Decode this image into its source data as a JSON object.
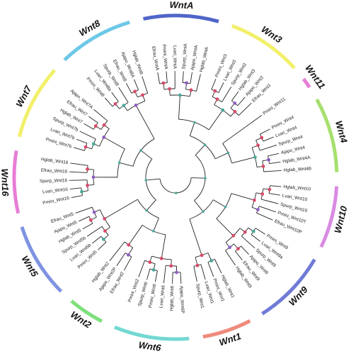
{
  "figure": {
    "bootstrap_colors": {
      "high": "#d94a6a",
      "medium": "#8e5fc4",
      "low": "#49a99a"
    },
    "clades": [
      {
        "name": "WntA",
        "color": "#4f66c8",
        "leaves": [
          "Efrau_WntA",
          "Pmini_WntA",
          "Lvari_WntA",
          "Spurp_WntA",
          "Ajapo_WntA",
          "Hglab_WntA"
        ]
      },
      {
        "name": "Wnt3",
        "color": "#f2ef6a",
        "leaves": [
          "Pmini_Wnt3",
          "Lvari_Wnt3",
          "Spurp_Wnt3",
          "Hglab_Wnt3",
          "Ajapo_Wnt3",
          "Efrau_Wnt3"
        ]
      },
      {
        "name": "Wnt11",
        "color": "#e77ed6",
        "leaves": [
          "Pmini_Wnt11"
        ]
      },
      {
        "name": "Wnt4",
        "color": "#a6e06e",
        "leaves": [
          "Pmini_Wnt4",
          "Lvari_Wnt4",
          "Spurp_Wnt4",
          "Ajapo_Wnt4",
          "Hglab_Wnt4A",
          "Hglab_Wnt4B"
        ]
      },
      {
        "name": "Wnt10",
        "color": "#d98be3",
        "leaves": [
          "Hglab_Wnt10",
          "Lvari_Wnt10",
          "Spurp_Wnt10",
          "Pmini_Wnt10T",
          "Efrau_Wnt10P"
        ]
      },
      {
        "name": "Wnt9",
        "color": "#6f7bd6",
        "leaves": [
          "Pmini_Wnt9",
          "Lvari_Wnt9a",
          "Spurp_Wnt9",
          "Ajapo_Wnt9",
          "Efrau_Wnt9",
          "Hglab_Wnt9"
        ]
      },
      {
        "name": "Wnt1",
        "color": "#ef8a7c",
        "leaves": [
          "Hglab_Wnt1",
          "Pmini_Wnt1",
          "Lvari_Wnt1",
          "Spurp_Wnt1"
        ]
      },
      {
        "name": "Wnt6",
        "color": "#72d8d2",
        "leaves": [
          "Ajapo_Wnt6P",
          "Hglab_Wnt6",
          "Lvari_Wnt6",
          "Pmini_Wnt6",
          "Spurp_Wnt6",
          "Pmini_Wnt2"
        ]
      },
      {
        "name": "Wnt2",
        "color": "#7ee07a",
        "leaves": [
          "Efrau_Wnt2",
          "Ajapo_Wnt2P",
          "Hglab_Wnt2"
        ]
      },
      {
        "name": "Wnt5",
        "color": "#7f93e3",
        "leaves": [
          "Pmini_Wnt5",
          "Lvari_Wnt5b",
          "Spurp_Wnt5b",
          "Hglab_Wnt5",
          "Ajapo_Wnt5",
          "Efrau_Wnt5"
        ]
      },
      {
        "name": "Wnt16",
        "color": "#e77ed6",
        "leaves": [
          "Pmini_Wnt16",
          "Lvari_Wnt16",
          "Spurp_Wnt16",
          "Efrau_Wnt16",
          "Hglab_Wnt16"
        ]
      },
      {
        "name": "Wnt7",
        "color": "#f2ef6a",
        "leaves": [
          "Pmini_Wnt7b",
          "Lvari_Wnt7b",
          "Spurp_Wnt7b",
          "Hglab_Wnt7",
          "Efrau_Wnt7",
          "Ajapo_Wnt7A"
        ]
      },
      {
        "name": "Wnt8",
        "color": "#6ec8e8",
        "leaves": [
          "Pmini_Wnt8",
          "Lvari_Wnt8a",
          "Spurp_Wnt8",
          "Efrau_Wnt8",
          "Ajapo_Wnt8A",
          "Hglab_Wnt8"
        ]
      }
    ]
  }
}
